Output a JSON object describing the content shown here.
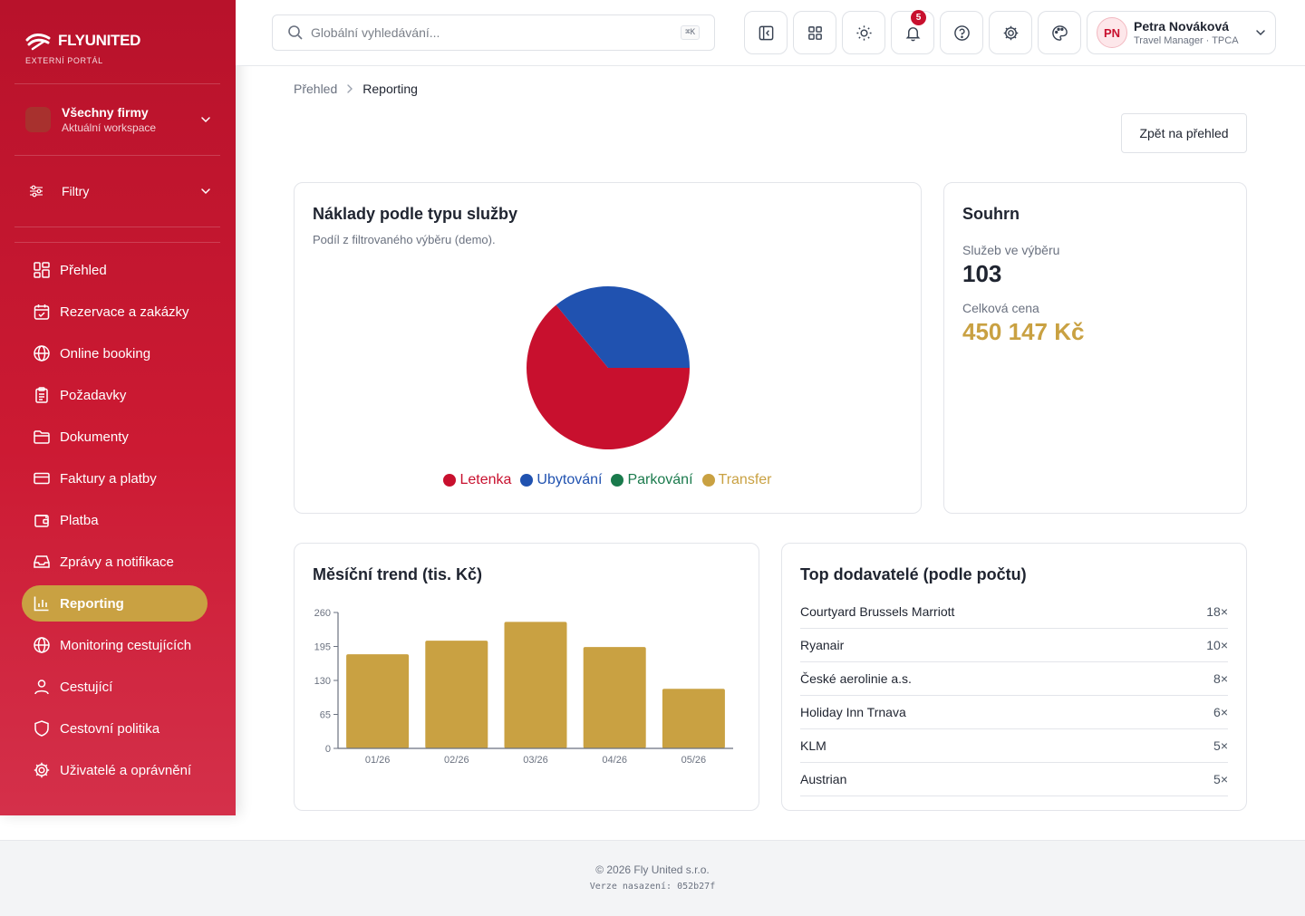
{
  "brand": {
    "name": "FLYUNITED",
    "subtitle": "EXTERNÍ PORTÁL"
  },
  "workspace": {
    "title": "Všechny firmy",
    "subtitle": "Aktuální workspace"
  },
  "filters": {
    "label": "Filtry"
  },
  "nav": {
    "items": [
      {
        "label": "Přehled",
        "icon": "dashboard-icon"
      },
      {
        "label": "Rezervace a zakázky",
        "icon": "calendar-check-icon"
      },
      {
        "label": "Online booking",
        "icon": "globe-icon"
      },
      {
        "label": "Požadavky",
        "icon": "clipboard-icon"
      },
      {
        "label": "Dokumenty",
        "icon": "folder-icon"
      },
      {
        "label": "Faktury a platby",
        "icon": "credit-card-icon"
      },
      {
        "label": "Platba",
        "icon": "wallet-icon"
      },
      {
        "label": "Zprávy a notifikace",
        "icon": "inbox-icon"
      },
      {
        "label": "Reporting",
        "icon": "bar-chart-icon",
        "active": true
      },
      {
        "label": "Monitoring cestujících",
        "icon": "globe-icon"
      },
      {
        "label": "Cestující",
        "icon": "user-icon"
      },
      {
        "label": "Cestovní politika",
        "icon": "shield-icon"
      },
      {
        "label": "Uživatelé a oprávnění",
        "icon": "gear-icon"
      }
    ]
  },
  "search": {
    "placeholder": "Globální vyhledávání...",
    "shortcut": "⌘K"
  },
  "header": {
    "notification_count": "5"
  },
  "user": {
    "initials": "PN",
    "name": "Petra Nováková",
    "role": "Travel Manager · TPCA"
  },
  "breadcrumb": {
    "home": "Přehled",
    "current": "Reporting"
  },
  "actions": {
    "back_label": "Zpět na přehled"
  },
  "cost_card": {
    "title": "Náklady podle typu služby",
    "subtitle": "Podíl z filtrovaného výběru (demo)."
  },
  "summary": {
    "title": "Souhrn",
    "services_label": "Služeb ve výběru",
    "services_value": "103",
    "price_label": "Celková cena",
    "price_value": "450 147 Kč"
  },
  "trend_card": {
    "title": "Měsíční trend (tis. Kč)"
  },
  "suppliers": {
    "title": "Top dodavatelé (podle počtu)",
    "rows": [
      {
        "name": "Courtyard Brussels Marriott",
        "count": "18×"
      },
      {
        "name": "Ryanair",
        "count": "10×"
      },
      {
        "name": "České aerolinie a.s.",
        "count": "8×"
      },
      {
        "name": "Holiday Inn Trnava",
        "count": "6×"
      },
      {
        "name": "KLM",
        "count": "5×"
      },
      {
        "name": "Austrian",
        "count": "5×"
      }
    ]
  },
  "footer": {
    "copyright": "© 2026 Fly United s.r.o.",
    "version": "Verze nasazení: 052b27f"
  },
  "colors": {
    "brand_red": "#c8102e",
    "accent_gold": "#c9a142",
    "blue": "#2052b0",
    "green": "#1a7a4c"
  },
  "chart_data": [
    {
      "type": "pie",
      "labels": [
        "Letenka",
        "Ubytování",
        "Parkování",
        "Transfer"
      ],
      "values": [
        64,
        36,
        0,
        0
      ],
      "colors": [
        "#c8102e",
        "#2052b0",
        "#1a7a4c",
        "#c9a142"
      ],
      "legend": "bottom"
    },
    {
      "type": "bar",
      "categories": [
        "01/26",
        "02/26",
        "03/26",
        "04/26",
        "05/26"
      ],
      "values": [
        180,
        206,
        242,
        194,
        114
      ],
      "yticks": [
        0,
        65,
        130,
        195,
        260
      ],
      "ylim": [
        0,
        260
      ],
      "color": "#c9a142"
    }
  ]
}
